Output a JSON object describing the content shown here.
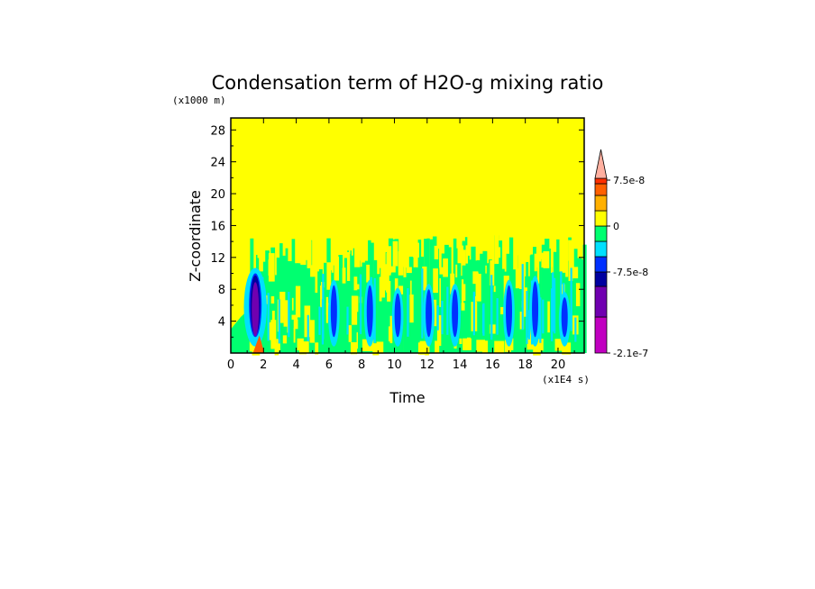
{
  "chart_data": {
    "type": "heatmap",
    "title": "Condensation term of H2O-g mixing ratio",
    "xlabel": "Time",
    "ylabel": "Z-coordinate",
    "x_unit": "(x1E4 s)",
    "y_unit": "(x1000 m)",
    "xlim": [
      0,
      21.6
    ],
    "ylim": [
      0,
      29.5
    ],
    "xticks": [
      0,
      2,
      4,
      6,
      8,
      10,
      12,
      14,
      16,
      18,
      20
    ],
    "yticks": [
      4,
      8,
      12,
      16,
      20,
      24,
      28
    ],
    "xtick_labels": [
      "0",
      "2",
      "4",
      "6",
      "8",
      "10",
      "12",
      "14",
      "16",
      "18",
      "20"
    ],
    "ytick_labels": [
      "4",
      "8",
      "12",
      "16",
      "20",
      "24",
      "28"
    ],
    "background_level_color": "#ffff00",
    "active_layer_top_km": 14,
    "convective_cells": [
      {
        "x": 1.5,
        "zmax": 10,
        "min_level": "-2.1e-7"
      },
      {
        "x": 6.3,
        "zmax": 8.5,
        "min_level": "-7.5e-8"
      },
      {
        "x": 8.5,
        "zmax": 8.5,
        "min_level": "-7.5e-8"
      },
      {
        "x": 10.2,
        "zmax": 7.5,
        "min_level": "-7.5e-8"
      },
      {
        "x": 12.1,
        "zmax": 8,
        "min_level": "-7.5e-8"
      },
      {
        "x": 13.7,
        "zmax": 8,
        "min_level": "-7.5e-8"
      },
      {
        "x": 17.0,
        "zmax": 8.5,
        "min_level": "-7.5e-8"
      },
      {
        "x": 18.6,
        "zmax": 9,
        "min_level": "-7.5e-8"
      },
      {
        "x": 20.4,
        "zmax": 7,
        "min_level": "-7.5e-8"
      }
    ],
    "colorbar": {
      "colors": [
        "#c000c0",
        "#7000b0",
        "#0000a0",
        "#0030ff",
        "#00e0ff",
        "#00ff70",
        "#ffff00",
        "#ffb000",
        "#ff6000",
        "#ff3000",
        "#ffb0a0"
      ],
      "labels": [
        "7.5e-8",
        "0",
        "-7.5e-8",
        "-2.1e-7"
      ],
      "extend": "max"
    }
  }
}
